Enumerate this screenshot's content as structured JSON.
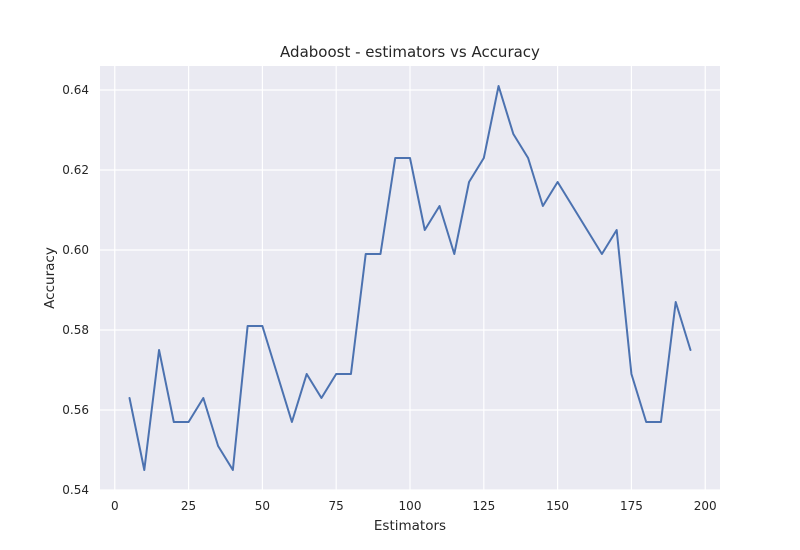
{
  "chart_data": {
    "type": "line",
    "title": "Adaboost - estimators vs Accuracy",
    "xlabel": "Estimators",
    "ylabel": "Accuracy",
    "xlim": [
      -5,
      205
    ],
    "ylim": [
      0.54,
      0.646
    ],
    "xticks": [
      0,
      25,
      50,
      75,
      100,
      125,
      150,
      175,
      200
    ],
    "yticks": [
      0.54,
      0.56,
      0.58,
      0.6,
      0.62,
      0.64
    ],
    "ytick_labels": [
      "0.54",
      "0.56",
      "0.58",
      "0.60",
      "0.62",
      "0.64"
    ],
    "grid": true,
    "background": "#EAEAF2",
    "grid_color": "#FFFFFF",
    "line_color": "#4C72B0",
    "x": [
      5,
      10,
      15,
      20,
      25,
      30,
      35,
      40,
      45,
      50,
      55,
      60,
      65,
      70,
      75,
      80,
      85,
      90,
      95,
      100,
      105,
      110,
      115,
      120,
      125,
      130,
      135,
      140,
      145,
      150,
      155,
      160,
      165,
      170,
      175,
      180,
      185,
      190,
      195
    ],
    "y": [
      0.563,
      0.545,
      0.575,
      0.557,
      0.557,
      0.563,
      0.551,
      0.545,
      0.581,
      0.581,
      0.569,
      0.557,
      0.569,
      0.563,
      0.569,
      0.569,
      0.599,
      0.599,
      0.623,
      0.623,
      0.605,
      0.611,
      0.599,
      0.617,
      0.623,
      0.641,
      0.629,
      0.623,
      0.611,
      0.617,
      0.611,
      0.605,
      0.599,
      0.605,
      0.569,
      0.557,
      0.557,
      0.587,
      0.575
    ]
  }
}
